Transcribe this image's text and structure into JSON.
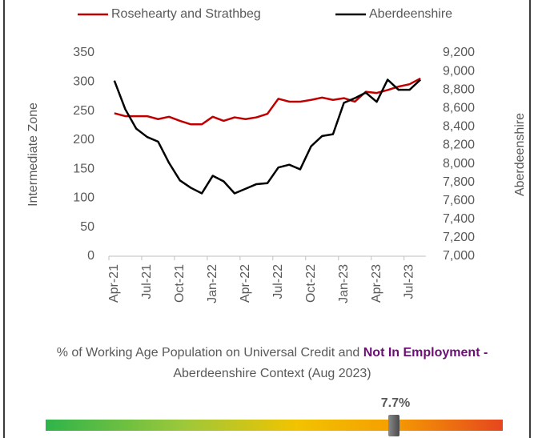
{
  "chart_data": {
    "type": "line",
    "legend": "top",
    "y_label": "Intermediate Zone",
    "y2_label": "Aberdeenshire",
    "categories": [
      "Apr-21",
      null,
      null,
      "Jul-21",
      null,
      null,
      "Oct-21",
      null,
      null,
      "Jan-22",
      null,
      null,
      "Apr-22",
      null,
      null,
      "Jul-22",
      null,
      null,
      "Oct-22",
      null,
      null,
      "Jan-23",
      null,
      null,
      "Apr-23",
      null,
      null,
      "Jul-23",
      null
    ],
    "series": [
      {
        "name": "Rosehearty and Strathbeg",
        "color": "#c00000",
        "axis": "y",
        "values": [
          246,
          241,
          241,
          241,
          236,
          240,
          233,
          227,
          227,
          240,
          233,
          239,
          236,
          239,
          245,
          271,
          266,
          266,
          269,
          273,
          269,
          272,
          266,
          283,
          281,
          286,
          292,
          296,
          306
        ]
      },
      {
        "name": "Aberdeenshire",
        "color": "#000000",
        "axis": "y2",
        "values": [
          8900,
          8590,
          8380,
          8290,
          8240,
          8010,
          7820,
          7740,
          7680,
          7870,
          7810,
          7680,
          7730,
          7780,
          7790,
          7960,
          7990,
          7940,
          8190,
          8300,
          8320,
          8660,
          8710,
          8770,
          8670,
          8910,
          8800,
          8800,
          8910
        ]
      }
    ],
    "ylim": [
      0,
      350
    ],
    "yticks": [
      0,
      50,
      100,
      150,
      200,
      250,
      300,
      350
    ],
    "y2lim": [
      7000,
      9200
    ],
    "y2ticks": [
      {
        "value": 7000,
        "label": "7,000"
      },
      {
        "value": 7200,
        "label": "7,200"
      },
      {
        "value": 7400,
        "label": "7,400"
      },
      {
        "value": 7600,
        "label": "7,600"
      },
      {
        "value": 7800,
        "label": "7,800"
      },
      {
        "value": 8000,
        "label": "8,000"
      },
      {
        "value": 8200,
        "label": "8,200"
      },
      {
        "value": 8400,
        "label": "8,400"
      },
      {
        "value": 8600,
        "label": "8,600"
      },
      {
        "value": 8800,
        "label": "8,800"
      },
      {
        "value": 9000,
        "label": "9,000"
      },
      {
        "value": 9200,
        "label": "9,200"
      }
    ],
    "grid": false
  },
  "context": {
    "text_before": "% of Working Age Population on Universal Credit and ",
    "text_emphasis": "Not In Employment -",
    "text_after": " Aberdeenshire Context (Aug 2023)",
    "marker_label": "7.7%"
  }
}
